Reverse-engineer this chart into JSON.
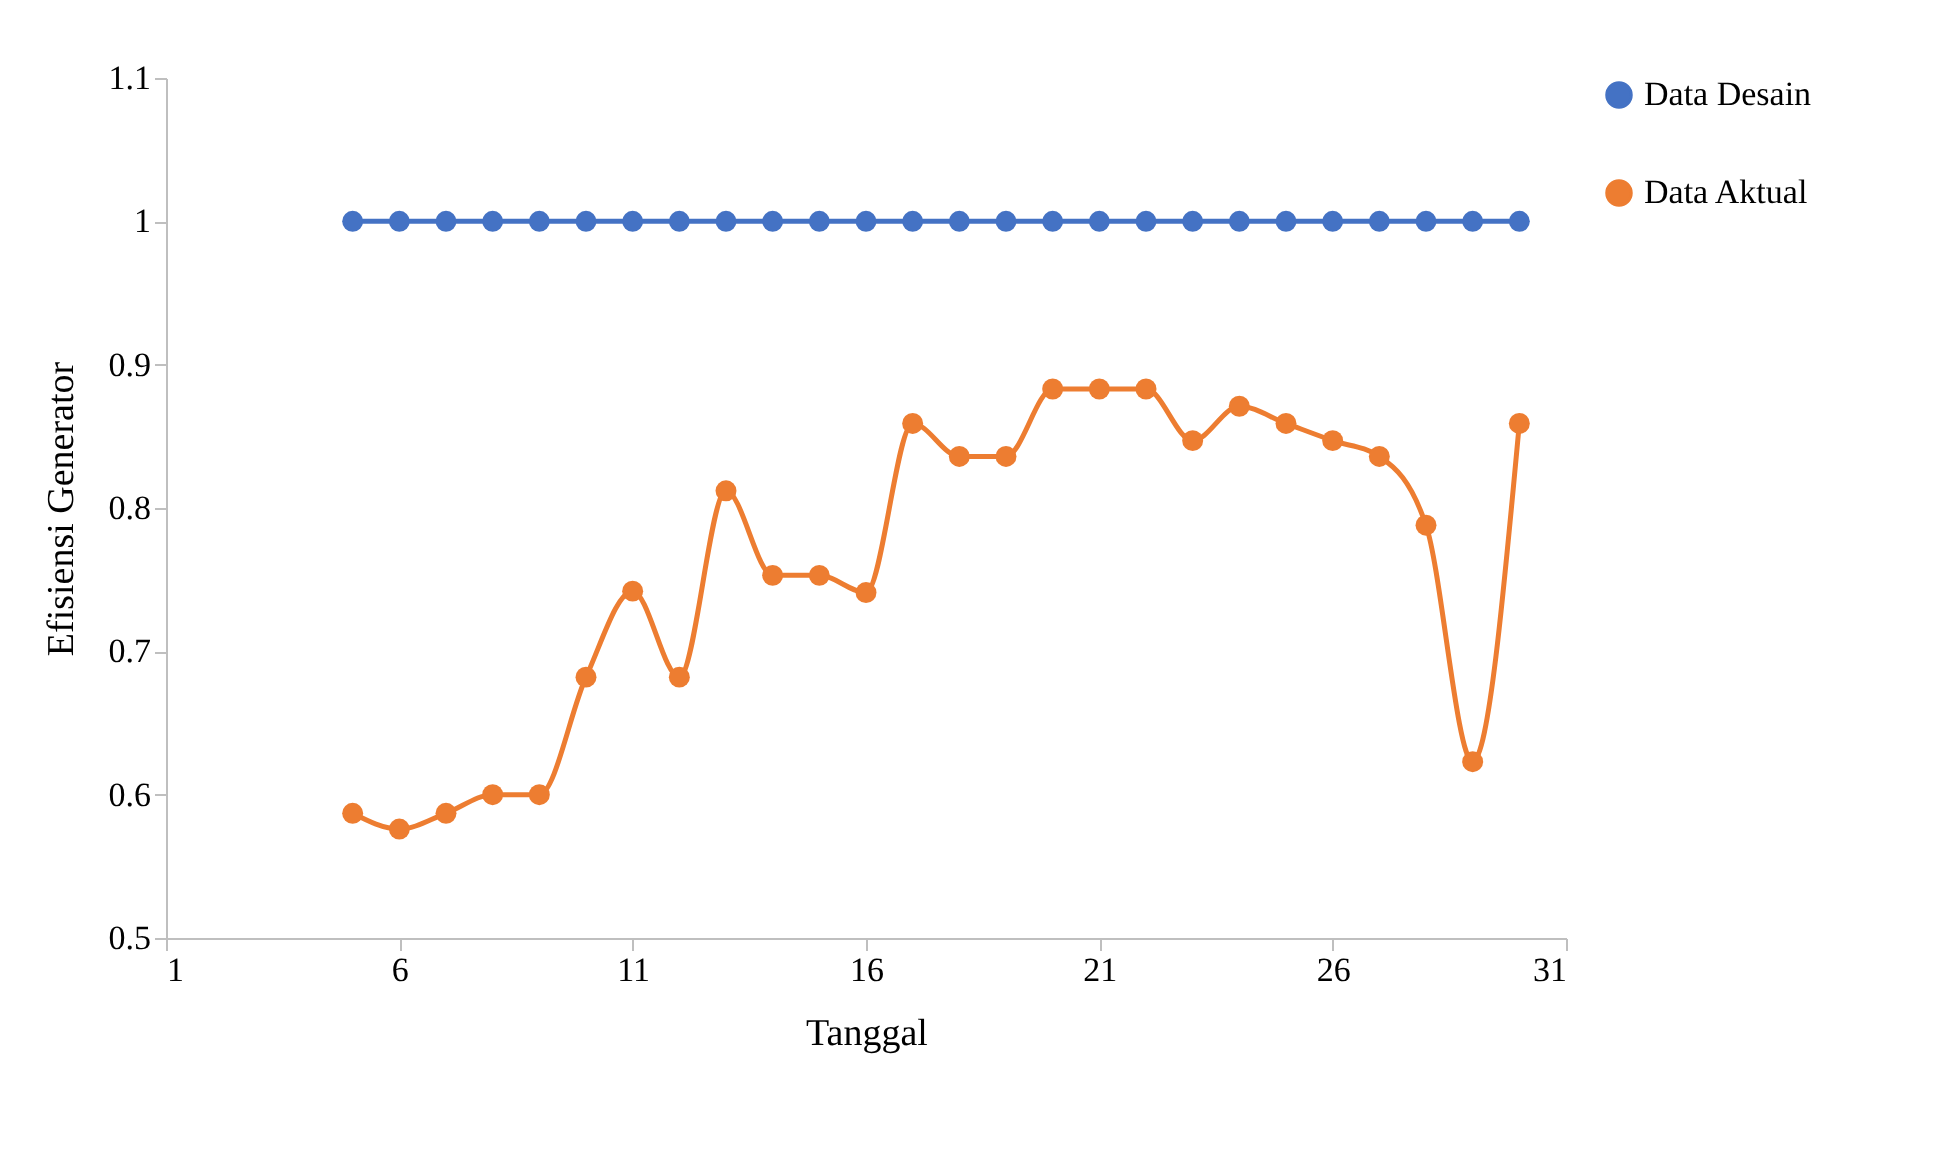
{
  "chart_data": {
    "type": "line",
    "xlabel": "Tanggal",
    "ylabel": "Efisiensi Generator",
    "x": [
      5,
      6,
      7,
      8,
      9,
      10,
      11,
      12,
      13,
      14,
      15,
      16,
      17,
      18,
      19,
      20,
      21,
      22,
      23,
      24,
      25,
      26,
      27,
      28,
      29,
      30
    ],
    "series": [
      {
        "name": "Data Desain",
        "color": "#4472c4",
        "values": [
          1,
          1,
          1,
          1,
          1,
          1,
          1,
          1,
          1,
          1,
          1,
          1,
          1,
          1,
          1,
          1,
          1,
          1,
          1,
          1,
          1,
          1,
          1,
          1,
          1,
          1
        ]
      },
      {
        "name": "Data Aktual",
        "color": "#ed7d31",
        "values": [
          0.587,
          0.576,
          0.587,
          0.6,
          0.6,
          0.682,
          0.742,
          0.682,
          0.812,
          0.753,
          0.753,
          0.741,
          0.859,
          0.836,
          0.836,
          0.883,
          0.883,
          0.883,
          0.847,
          0.871,
          0.859,
          0.847,
          0.836,
          0.788,
          0.623,
          0.859
        ]
      }
    ],
    "xlim": [
      1,
      31
    ],
    "xticks": [
      1,
      6,
      11,
      16,
      21,
      26,
      31
    ],
    "ylim": [
      0.5,
      1.1
    ],
    "yticks": [
      0.5,
      0.6,
      0.7,
      0.8,
      0.9,
      1,
      1.1
    ],
    "grid": false,
    "legend": "right",
    "marker": "circle",
    "line_style": "solid"
  }
}
